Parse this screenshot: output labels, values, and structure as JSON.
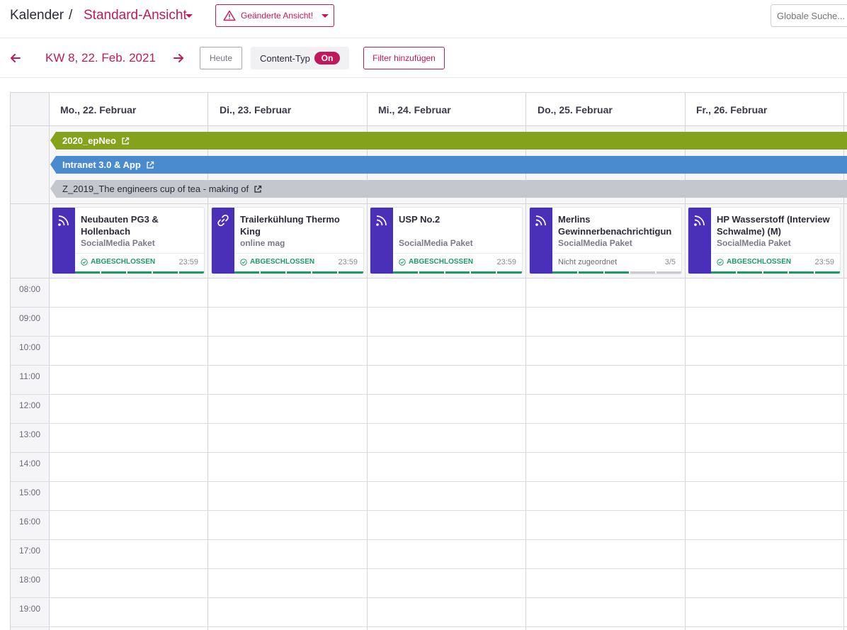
{
  "header": {
    "breadcrumb_root": "Kalender",
    "breadcrumb_sep": "/",
    "view_name": "Standard-Ansicht",
    "changed_view_label": "Geänderte Ansicht!",
    "search_placeholder": "Globale Suche..."
  },
  "toolbar": {
    "week_label": "KW 8, 22. Feb. 2021",
    "today_label": "Heute",
    "content_type_label": "Content-Typ",
    "content_type_state": "On",
    "add_filter_label": "Filter hinzufügen"
  },
  "days": [
    {
      "label": "Mo., 22. Februar"
    },
    {
      "label": "Di., 23. Februar"
    },
    {
      "label": "Mi., 24. Februar"
    },
    {
      "label": "Do., 25. Februar"
    },
    {
      "label": "Fr., 26. Februar"
    }
  ],
  "allday_bars": [
    {
      "label": "2020_epNeo",
      "color": "#84a21b",
      "text_color": "#ffffff"
    },
    {
      "label": "Intranet 3.0 & App",
      "color": "#4a8bd0",
      "text_color": "#ffffff"
    },
    {
      "label": "Z_2019_The engineers cup of tea - making of",
      "color": "#c4c7cd",
      "text_color": "#2b2b3a"
    }
  ],
  "cards": [
    {
      "title": "Neubauten PG3 & Hollenbach",
      "subtitle": "SocialMedia Paket",
      "status": "ABGESCHLOSSEN",
      "time": "23:59",
      "icon": "rss-icon",
      "done": true,
      "progress_steps": 5,
      "progress_filled": 5
    },
    {
      "title": "Trailerkühlung Thermo King",
      "subtitle": "online mag",
      "status": "ABGESCHLOSSEN",
      "time": "23:59",
      "icon": "link-icon",
      "done": true,
      "progress_steps": 5,
      "progress_filled": 5
    },
    {
      "title": "USP No.2",
      "subtitle": "SocialMedia Paket",
      "status": "ABGESCHLOSSEN",
      "time": "23:59",
      "icon": "rss-icon",
      "done": true,
      "progress_steps": 5,
      "progress_filled": 5
    },
    {
      "title": "Merlins Gewinnerbenachrichtigun",
      "subtitle": "SocialMedia Paket",
      "status": "Nicht zugeordnet",
      "time": "3/5",
      "icon": "rss-icon",
      "done": false,
      "progress_steps": 5,
      "progress_filled": 3
    },
    {
      "title": "HP Wasserstoff (Interview Schwalme) (M)",
      "subtitle": "SocialMedia Paket",
      "status": "ABGESCHLOSSEN",
      "time": "23:59",
      "icon": "rss-icon",
      "done": true,
      "progress_steps": 5,
      "progress_filled": 5
    }
  ],
  "hours": [
    "08:00",
    "09:00",
    "10:00",
    "11:00",
    "12:00",
    "13:00",
    "14:00",
    "15:00",
    "16:00",
    "17:00",
    "18:00",
    "19:00"
  ],
  "colors": {
    "accent": "#c2185b",
    "card_stripe": "#4a2fb8",
    "done": "#1b9a67"
  }
}
